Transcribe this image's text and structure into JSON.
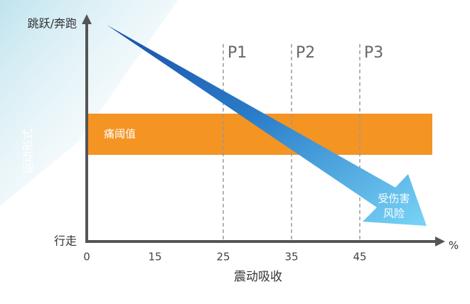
{
  "y_axis": {
    "label": "运动形式",
    "top": "跳跃/奔跑",
    "bottom": "行走"
  },
  "x_axis": {
    "label": "震动吸收",
    "unit": "%",
    "ticks": [
      0,
      15,
      25,
      35,
      45
    ]
  },
  "markers": [
    {
      "label": "P1",
      "at": 25
    },
    {
      "label": "P2",
      "at": 35
    },
    {
      "label": "P3",
      "at": 45
    }
  ],
  "band": {
    "label": "痛阈值"
  },
  "arrow": {
    "label_lines": [
      "受伤害",
      "风险"
    ]
  }
}
